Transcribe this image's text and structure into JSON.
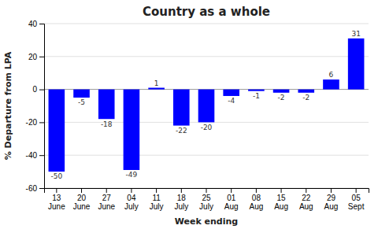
{
  "chart_data": {
    "type": "bar",
    "title": "Country as a whole",
    "x_label": "Week ending",
    "y_label": "% Departure from LPA",
    "categories": [
      "13\nJune",
      "20\nJune",
      "27\nJune",
      "04\nJuly",
      "11\nJuly",
      "18\nJuly",
      "25\nJuly",
      "01\nAug",
      "08\nAug",
      "15\nAug",
      "22\nAug",
      "29\nAug",
      "05\nSept"
    ],
    "values": [
      -50,
      -5,
      -18,
      -49,
      1,
      -22,
      -20,
      -4,
      -1,
      -2,
      -2,
      6,
      31
    ],
    "color": "#0000FF",
    "ylim": [
      -60,
      40
    ],
    "yticks": [
      -60,
      -40,
      -20,
      0,
      20,
      40
    ],
    "grid": true,
    "data_labels": true
  }
}
